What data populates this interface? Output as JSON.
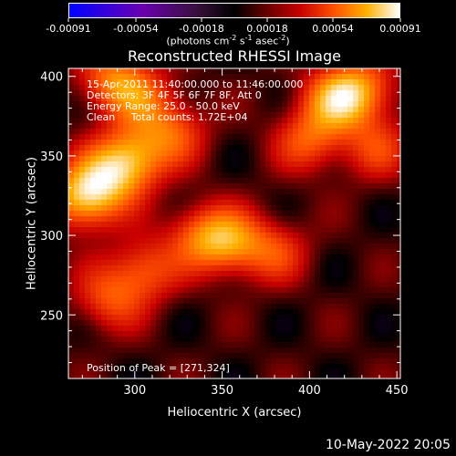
{
  "chart_data": {
    "type": "heatmap",
    "title": "Reconstructed RHESSI Image",
    "xlabel": "Heliocentric X (arcsec)",
    "ylabel": "Heliocentric Y (arcsec)",
    "xlim": [
      262,
      452
    ],
    "ylim": [
      210,
      405
    ],
    "x_ticks": [
      "300",
      "350",
      "400",
      "450"
    ],
    "y_ticks": [
      "250",
      "300",
      "350",
      "400"
    ],
    "colorbar": {
      "unit_label": "(photons cm",
      "unit_exp1": "-2",
      "unit_mid": " s",
      "unit_exp2": "-1",
      "unit_mid2": " asec",
      "unit_exp3": "-2",
      "unit_end": ")",
      "range": [
        -0.00091,
        0.00091
      ],
      "ticks": [
        "-0.00091",
        "-0.00054",
        "-0.00018",
        "0.00018",
        "0.00054",
        "0.00091"
      ],
      "colors": [
        "#0000ff",
        "#6a00b0",
        "#000000",
        "#c80000",
        "#ff5000",
        "#ffb000",
        "#ffffff"
      ]
    },
    "annotations": [
      "15-Apr-2011 11:40:00.000 to 11:46:00.000",
      "Detectors: 3F 4F 5F 6F 7F 8F, Att 0",
      "Energy Range: 25.0 - 50.0 keV",
      "Clean     Total counts: 1.72E+04"
    ],
    "peak_label": "Position of Peak = [271,324]",
    "peak_position": [
      271,
      324
    ],
    "sources": [
      {
        "x": 271,
        "y": 324,
        "intensity": 0.00091
      },
      {
        "x": 288,
        "y": 340,
        "intensity": 0.0006
      },
      {
        "x": 300,
        "y": 350,
        "intensity": 0.00055
      },
      {
        "x": 288,
        "y": 398,
        "intensity": 0.0006
      },
      {
        "x": 322,
        "y": 365,
        "intensity": 0.00045
      },
      {
        "x": 305,
        "y": 385,
        "intensity": 0.0004
      },
      {
        "x": 415,
        "y": 385,
        "intensity": 0.00068
      },
      {
        "x": 430,
        "y": 392,
        "intensity": 0.00055
      },
      {
        "x": 400,
        "y": 360,
        "intensity": 0.0005
      },
      {
        "x": 438,
        "y": 355,
        "intensity": 0.0004
      },
      {
        "x": 355,
        "y": 295,
        "intensity": 0.0006
      },
      {
        "x": 338,
        "y": 300,
        "intensity": 0.0005
      },
      {
        "x": 305,
        "y": 278,
        "intensity": 0.0005
      },
      {
        "x": 285,
        "y": 260,
        "intensity": 0.00045
      },
      {
        "x": 380,
        "y": 290,
        "intensity": 0.0004
      }
    ]
  },
  "footer": {
    "timestamp": "10-May-2022 20:05"
  }
}
